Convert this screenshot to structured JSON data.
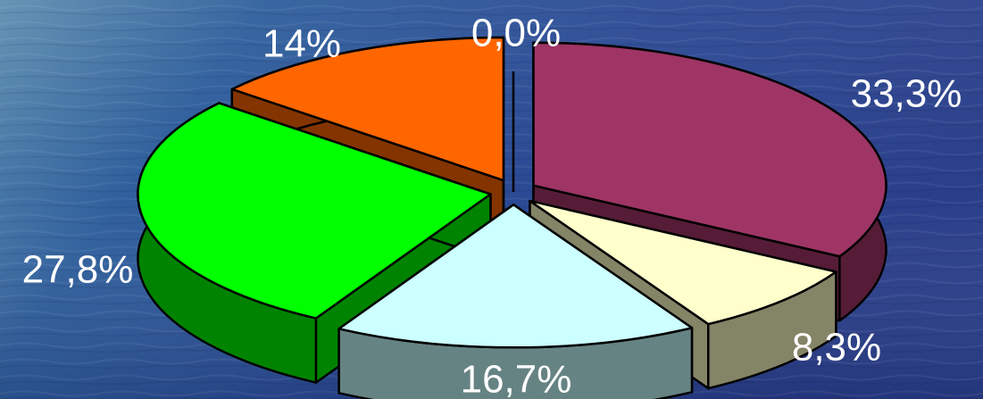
{
  "chart_data": {
    "type": "pie",
    "style": "3d-exploded",
    "legend": "none",
    "slices": [
      {
        "label": "33,3%",
        "value": 33.3,
        "top_color": "#9e3565",
        "side_color": "#561c37"
      },
      {
        "label": "8,3%",
        "value": 8.3,
        "top_color": "#ffffcc",
        "side_color": "#848467"
      },
      {
        "label": "16,7%",
        "value": 16.7,
        "top_color": "#ccffff",
        "side_color": "#668383"
      },
      {
        "label": "27,8%",
        "value": 27.8,
        "top_color": "#00ff00",
        "side_color": "#008300"
      },
      {
        "label": "14%",
        "value": 14,
        "top_color": "#ff6600",
        "side_color": "#833400"
      },
      {
        "label": "0,0%",
        "value": 0,
        "top_color": "#cccccc",
        "side_color": "#666666"
      }
    ]
  }
}
